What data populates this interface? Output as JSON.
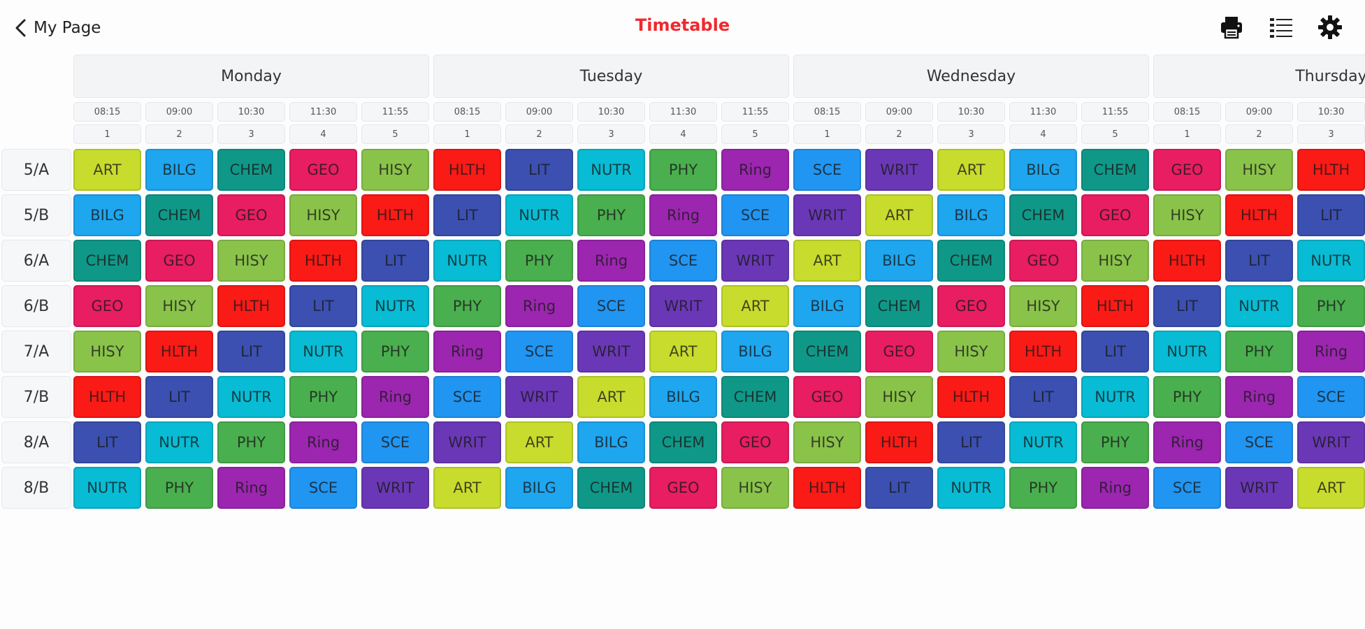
{
  "header": {
    "back_label": "My Page",
    "title": "Timetable",
    "icons": [
      "chevron-left-icon",
      "print-icon",
      "list-icon",
      "gear-icon"
    ],
    "title_color": "#f0282f"
  },
  "days": [
    {
      "name": "Monday",
      "times": [
        "08:15",
        "09:00",
        "10:30",
        "11:30",
        "11:55"
      ],
      "numbers": [
        "1",
        "2",
        "3",
        "4",
        "5"
      ]
    },
    {
      "name": "Tuesday",
      "times": [
        "08:15",
        "09:00",
        "10:30",
        "11:30",
        "11:55"
      ],
      "numbers": [
        "1",
        "2",
        "3",
        "4",
        "5"
      ]
    },
    {
      "name": "Wednesday",
      "times": [
        "08:15",
        "09:00",
        "10:30",
        "11:30",
        "11:55"
      ],
      "numbers": [
        "1",
        "2",
        "3",
        "4",
        "5"
      ]
    },
    {
      "name": "Thursday",
      "times": [
        "08:15",
        "09:00",
        "10:30"
      ],
      "numbers": [
        "1",
        "2",
        "3"
      ]
    }
  ],
  "subject_colors": {
    "ART": "#c7dc2c",
    "BILG": "#1ea6ef",
    "CHEM": "#0f9888",
    "GEO": "#e81d62",
    "HISY": "#8ac34a",
    "HLTH": "#fa1a16",
    "LIT": "#3b50b0",
    "NUTR": "#07bcd4",
    "PHY": "#4aaf4e",
    "Ring": "#9c26b0",
    "SCE": "#2195f2",
    "WRIT": "#6a38b6"
  },
  "rows": [
    {
      "label": "5/A",
      "cells": [
        "ART",
        "BILG",
        "CHEM",
        "GEO",
        "HISY",
        "HLTH",
        "LIT",
        "NUTR",
        "PHY",
        "Ring",
        "SCE",
        "WRIT",
        "ART",
        "BILG",
        "CHEM",
        "GEO",
        "HISY",
        "HLTH"
      ]
    },
    {
      "label": "5/B",
      "cells": [
        "BILG",
        "CHEM",
        "GEO",
        "HISY",
        "HLTH",
        "LIT",
        "NUTR",
        "PHY",
        "Ring",
        "SCE",
        "WRIT",
        "ART",
        "BILG",
        "CHEM",
        "GEO",
        "HISY",
        "HLTH",
        "LIT"
      ]
    },
    {
      "label": "6/A",
      "cells": [
        "CHEM",
        "GEO",
        "HISY",
        "HLTH",
        "LIT",
        "NUTR",
        "PHY",
        "Ring",
        "SCE",
        "WRIT",
        "ART",
        "BILG",
        "CHEM",
        "GEO",
        "HISY",
        "HLTH",
        "LIT",
        "NUTR"
      ]
    },
    {
      "label": "6/B",
      "cells": [
        "GEO",
        "HISY",
        "HLTH",
        "LIT",
        "NUTR",
        "PHY",
        "Ring",
        "SCE",
        "WRIT",
        "ART",
        "BILG",
        "CHEM",
        "GEO",
        "HISY",
        "HLTH",
        "LIT",
        "NUTR",
        "PHY"
      ]
    },
    {
      "label": "7/A",
      "cells": [
        "HISY",
        "HLTH",
        "LIT",
        "NUTR",
        "PHY",
        "Ring",
        "SCE",
        "WRIT",
        "ART",
        "BILG",
        "CHEM",
        "GEO",
        "HISY",
        "HLTH",
        "LIT",
        "NUTR",
        "PHY",
        "Ring"
      ]
    },
    {
      "label": "7/B",
      "cells": [
        "HLTH",
        "LIT",
        "NUTR",
        "PHY",
        "Ring",
        "SCE",
        "WRIT",
        "ART",
        "BILG",
        "CHEM",
        "GEO",
        "HISY",
        "HLTH",
        "LIT",
        "NUTR",
        "PHY",
        "Ring",
        "SCE"
      ]
    },
    {
      "label": "8/A",
      "cells": [
        "LIT",
        "NUTR",
        "PHY",
        "Ring",
        "SCE",
        "WRIT",
        "ART",
        "BILG",
        "CHEM",
        "GEO",
        "HISY",
        "HLTH",
        "LIT",
        "NUTR",
        "PHY",
        "Ring",
        "SCE",
        "WRIT"
      ]
    },
    {
      "label": "8/B",
      "cells": [
        "NUTR",
        "PHY",
        "Ring",
        "SCE",
        "WRIT",
        "ART",
        "BILG",
        "CHEM",
        "GEO",
        "HISY",
        "HLTH",
        "LIT",
        "NUTR",
        "PHY",
        "Ring",
        "SCE",
        "WRIT",
        "ART"
      ]
    }
  ]
}
